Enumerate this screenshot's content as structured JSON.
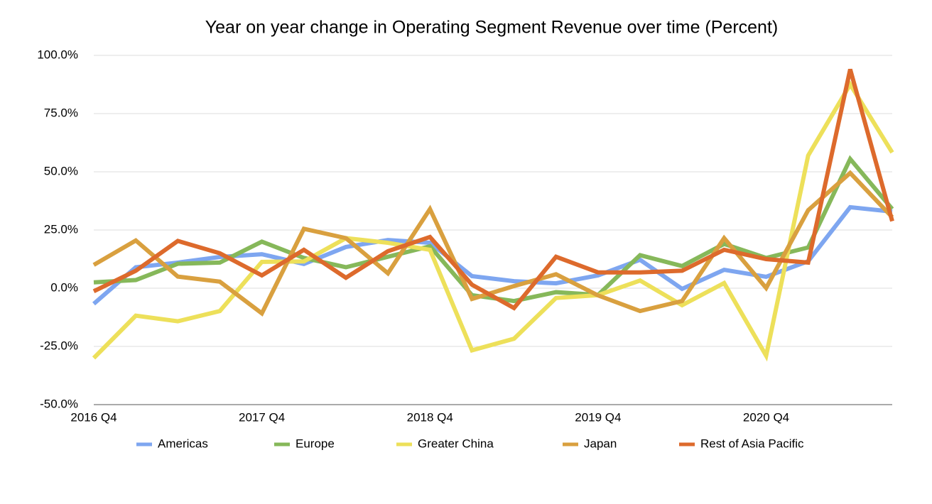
{
  "chart_data": {
    "type": "line",
    "title": "Year on year change in Operating Segment Revenue over time (Percent)",
    "categories": [
      "2016 Q4",
      null,
      null,
      null,
      "2017 Q4",
      null,
      null,
      null,
      "2018 Q4",
      null,
      null,
      null,
      "2019 Q4",
      null,
      null,
      null,
      "2020 Q4",
      null,
      null,
      null
    ],
    "series": [
      {
        "name": "Americas",
        "color": "#7ea6f0",
        "values": [
          -6.7,
          9,
          11,
          13.4,
          14.6,
          10.4,
          17.7,
          20.7,
          19.5,
          5.2,
          3,
          2.1,
          5.5,
          12.2,
          -0.3,
          7.9,
          4.9,
          11.6,
          34.8,
          32.9
        ]
      },
      {
        "name": "Europe",
        "color": "#86b85a",
        "values": [
          2.5,
          3.5,
          10.5,
          11,
          20,
          13,
          9,
          13.5,
          18,
          -3,
          -5.5,
          -1.7,
          -2.9,
          14.2,
          9.5,
          19,
          13,
          17.5,
          55.5,
          34
        ]
      },
      {
        "name": "Greater China",
        "color": "#ede05a",
        "values": [
          -30,
          -11.8,
          -14.2,
          -9.8,
          11.3,
          11.5,
          21.5,
          19.5,
          16.5,
          -26.7,
          -21.7,
          -4.2,
          -3,
          3.3,
          -7.3,
          2.2,
          -29,
          57,
          87.5,
          58.3
        ]
      },
      {
        "name": "Japan",
        "color": "#d9a03f",
        "values": [
          10,
          20.5,
          5,
          2.8,
          -10.8,
          25.5,
          21.5,
          6.4,
          34,
          -4.6,
          0.9,
          6,
          -3.1,
          -9.8,
          -5.5,
          21.5,
          0.1,
          33.5,
          49.5,
          30.5
        ]
      },
      {
        "name": "Rest of Asia Pacific",
        "color": "#dd6a2c",
        "values": [
          -1.3,
          7.5,
          20.3,
          15,
          5.5,
          16.5,
          4.5,
          15.9,
          22,
          1.5,
          -8.5,
          13.5,
          6.8,
          6.8,
          7.5,
          16.5,
          12.5,
          11,
          94,
          28.8
        ]
      }
    ],
    "ylim": [
      -50,
      100
    ],
    "yticks": [
      {
        "value": -50,
        "label": "-50.0%"
      },
      {
        "value": -25,
        "label": "-25.0%"
      },
      {
        "value": 0,
        "label": "0.0%"
      },
      {
        "value": 25,
        "label": "25.0%"
      },
      {
        "value": 50,
        "label": "50.0%"
      },
      {
        "value": 75,
        "label": "75.0%"
      },
      {
        "value": 100,
        "label": "100.0%"
      }
    ],
    "grid": true,
    "legend": "bottom"
  }
}
